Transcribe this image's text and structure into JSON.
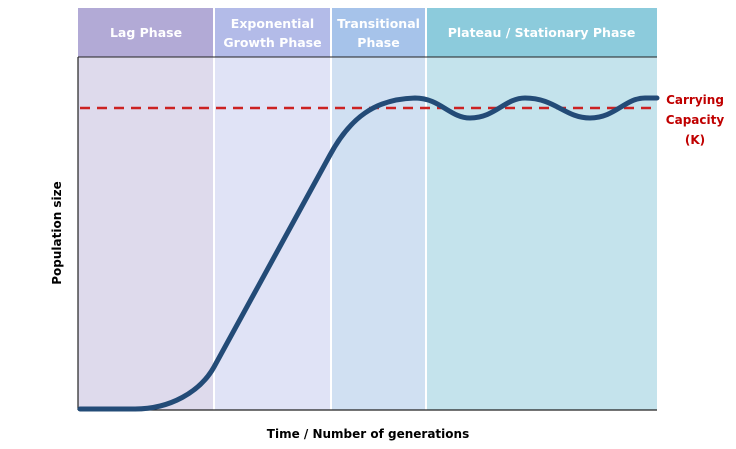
{
  "phases": [
    {
      "label_lines": [
        "Lag Phase"
      ],
      "header_color": "#b2aad6",
      "body_color": "#dedaec"
    },
    {
      "label_lines": [
        "Exponential",
        "Growth Phase"
      ],
      "header_color": "#b3bbe8",
      "body_color": "#e0e3f6"
    },
    {
      "label_lines": [
        "Transitional",
        "Phase"
      ],
      "header_color": "#a6c3ea",
      "body_color": "#d0e0f2"
    },
    {
      "label_lines": [
        "Plateau / Stationary Phase"
      ],
      "header_color": "#8ccbdc",
      "body_color": "#c4e3ec"
    }
  ],
  "axes": {
    "x_label": "Time / Number of generations",
    "y_label": "Population size"
  },
  "carrying_capacity": {
    "label_lines": [
      "Carrying",
      "Capacity",
      "(K)"
    ],
    "color": "#cc2222"
  },
  "curve_color": "#234b77"
}
